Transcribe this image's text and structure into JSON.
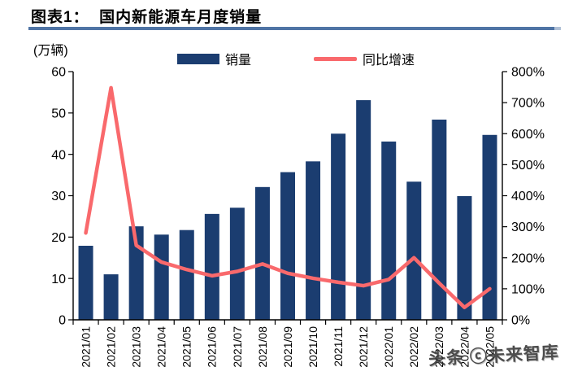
{
  "figure": {
    "title": "图表1：  国内新能源车月度销量",
    "unit_label": "(万辆)",
    "watermark": "头条 ⓒ未来智库"
  },
  "legend": {
    "bar_label": "销量",
    "line_label": "同比增速"
  },
  "colors": {
    "bar": "#1b3d70",
    "line": "#f9696c",
    "underline": "#4f74a5",
    "axis": "#000000"
  },
  "chart_data": {
    "type": "bar+line",
    "title": "国内新能源车月度销量",
    "categories": [
      "2021/01",
      "2021/02",
      "2021/03",
      "2021/04",
      "2021/05",
      "2021/06",
      "2021/07",
      "2021/08",
      "2021/09",
      "2021/10",
      "2021/11",
      "2021/12",
      "2022/01",
      "2022/02",
      "2022/03",
      "2022/04",
      "2022/05"
    ],
    "series": [
      {
        "name": "销量",
        "type": "bar",
        "axis": "left",
        "unit": "万辆",
        "values": [
          17.9,
          11.0,
          22.6,
          20.6,
          21.7,
          25.6,
          27.1,
          32.1,
          35.7,
          38.3,
          45.0,
          53.1,
          43.1,
          33.4,
          48.4,
          29.9,
          44.7
        ]
      },
      {
        "name": "同比增速",
        "type": "line",
        "axis": "right",
        "unit": "%",
        "values": [
          280,
          748,
          240,
          186,
          162,
          142,
          156,
          180,
          150,
          134,
          121,
          110,
          130,
          200,
          118,
          40,
          100
        ]
      }
    ],
    "left_axis": {
      "min": 0,
      "max": 60,
      "step": 10,
      "tick_labels": [
        "0",
        "10",
        "20",
        "30",
        "40",
        "50",
        "60"
      ]
    },
    "right_axis": {
      "min": 0,
      "max": 800,
      "step": 100,
      "tick_labels": [
        "0%",
        "100%",
        "200%",
        "300%",
        "400%",
        "500%",
        "600%",
        "700%",
        "800%"
      ]
    },
    "grid": false,
    "legend_position": "top"
  }
}
